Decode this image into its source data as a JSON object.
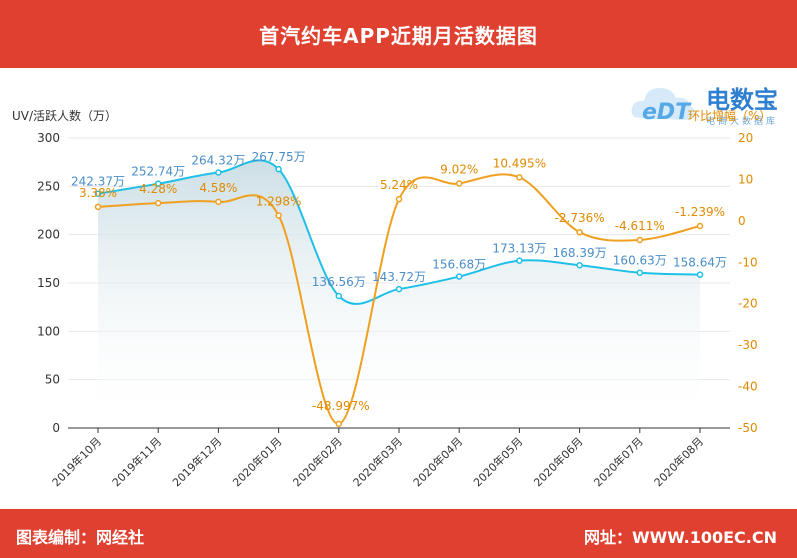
{
  "header": {
    "title": "首汽约车APP近期月活数据图"
  },
  "footer": {
    "left": "图表编制：网经社",
    "right": "网址：WWW.100EC.CN"
  },
  "logo": {
    "mark": "eDT",
    "name": "电数宝",
    "subtitle": "电商大数据库"
  },
  "colors": {
    "header": "#e0402f",
    "uv_line": "#1fc0e8",
    "growth_line": "#f0a020",
    "uv_label": "#4a8ec8",
    "growth_label": "#e08a00"
  },
  "chart_data": {
    "type": "line",
    "categories": [
      "2019年10月",
      "2019年11月",
      "2019年12月",
      "2020年01月",
      "2020年02月",
      "2020年03月",
      "2020年04月",
      "2020年05月",
      "2020年06月",
      "2020年07月",
      "2020年08月"
    ],
    "ylabel": "UV/活跃人数（万）",
    "y2label": "环比增幅（%）",
    "ylim": [
      0,
      300
    ],
    "y2lim": [
      -50,
      20
    ],
    "yticks": [
      0,
      50,
      100,
      150,
      200,
      250,
      300
    ],
    "y2ticks": [
      -50,
      -40,
      -30,
      -20,
      -10,
      0,
      10,
      20
    ],
    "series": [
      {
        "name": "UV/活跃人数（万）",
        "axis": "left",
        "values": [
          242.37,
          252.74,
          264.32,
          267.75,
          136.56,
          143.72,
          156.68,
          173.13,
          168.39,
          160.63,
          158.64
        ],
        "labels": [
          "242.37万",
          "252.74万",
          "264.32万",
          "267.75万",
          "136.56万",
          "143.72万",
          "156.68万",
          "173.13万",
          "168.39万",
          "160.63万",
          "158.64万"
        ]
      },
      {
        "name": "环比增幅（%）",
        "axis": "right",
        "values": [
          3.38,
          4.28,
          4.58,
          1.298,
          -48.997,
          5.24,
          9.02,
          10.495,
          -2.736,
          -4.611,
          -1.239
        ],
        "labels": [
          "3.38%",
          "4.28%",
          "4.58%",
          "1.298%",
          "-48.997%",
          "5.24%",
          "9.02%",
          "10.495%",
          "-2.736%",
          "-4.611%",
          "-1.239%"
        ]
      }
    ]
  }
}
